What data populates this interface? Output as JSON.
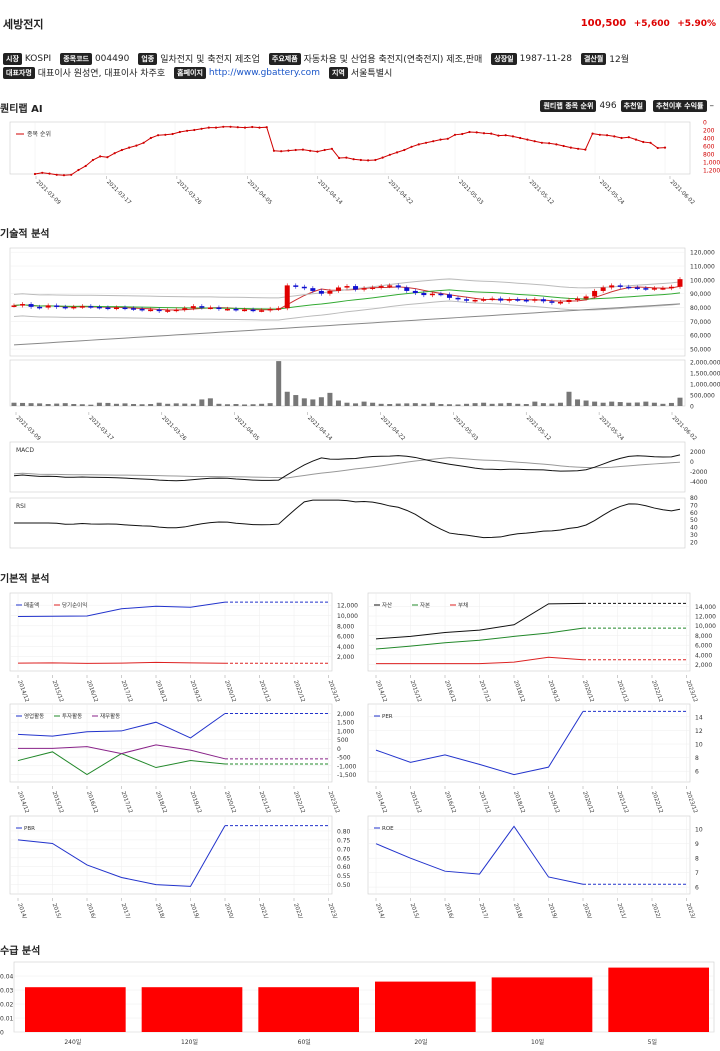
{
  "company": {
    "name": "세방전지",
    "price": "100,500",
    "change": "+5,600",
    "change_pct": "+5.90%"
  },
  "info": {
    "market_tag": "시장",
    "market": "KOSPI",
    "code_tag": "종목코드",
    "code": "004490",
    "industry_tag": "업종",
    "industry": "일차전지 및 축전지 제조업",
    "product_tag": "주요제품",
    "product": "자동차용 및 산업용 축전지(연축전지) 제조,판매",
    "listed_tag": "상장일",
    "listed": "1987-11-28",
    "fiscal_tag": "결산월",
    "fiscal": "12월",
    "ceo_tag": "대표자명",
    "ceo": "대표이사 원성연, 대표이사 차주호",
    "homepage_tag": "홈페이지",
    "homepage": "http://www.gbattery.com",
    "region_tag": "지역",
    "region": "서울특별시"
  },
  "ai": {
    "title": "퀀티랩 AI",
    "rank_tag": "퀀티랩 종목 순위",
    "rank": "496",
    "rec_date_tag": "추천일",
    "rec_return_tag": "추천이후 수익률",
    "rec_return": "–",
    "legend": "종목 순위"
  },
  "sections": {
    "technical": "기술적 분석",
    "fundamental": "기본적 분석",
    "supply": "수급 분석"
  },
  "colors": {
    "up": "#e00000",
    "down": "#1010d0",
    "accent": "#d00000",
    "series_blue": "#2233cc",
    "series_red": "#dd2222",
    "series_green": "#22882a",
    "series_purple": "#882288"
  },
  "dates": [
    "2021-03-09",
    "2021-03-17",
    "2021-03-26",
    "2021-04-05",
    "2021-04-14",
    "2021-04-22",
    "2021-05-03",
    "2021-05-12",
    "2021-05-24",
    "2021-06-02"
  ],
  "years": [
    "2014/12",
    "2015/12",
    "2016/12",
    "2017/12",
    "2018/12",
    "2019/12",
    "2020/12",
    "2021/12",
    "2022/12",
    "2023/12"
  ],
  "chart_data": [
    {
      "id": "rank",
      "type": "line",
      "title": "",
      "series": [
        {
          "name": "종목 순위",
          "values": [
            1300,
            1270,
            1290,
            1320,
            1330,
            1320,
            1200,
            1100,
            950,
            860,
            880,
            780,
            700,
            640,
            590,
            520,
            400,
            330,
            320,
            300,
            250,
            220,
            200,
            170,
            140,
            140,
            120,
            120,
            130,
            140,
            125,
            140,
            130,
            720,
            730,
            715,
            700,
            690,
            720,
            740,
            700,
            670,
            900,
            890,
            930,
            950,
            960,
            950,
            890,
            820,
            760,
            700,
            620,
            560,
            520,
            480,
            440,
            420,
            320,
            300,
            250,
            260,
            280,
            290,
            340,
            330,
            360,
            400,
            440,
            480,
            520,
            530,
            560,
            600,
            640,
            670,
            690,
            290,
            320,
            330,
            360,
            400,
            380,
            440,
            500,
            520,
            650,
            640
          ]
        }
      ],
      "y_ticks": [
        "0",
        "200",
        "400",
        "600",
        "800",
        "1,000",
        "1,200"
      ],
      "ylim": [
        0,
        1300
      ]
    },
    {
      "id": "price",
      "type": "candlestick",
      "y_ticks": [
        "120,000",
        "110,000",
        "100,000",
        "90,000",
        "80,000",
        "70,000",
        "60,000",
        "50,000"
      ],
      "ylim": [
        45000,
        123000
      ],
      "closes": [
        81500,
        82500,
        80500,
        80000,
        81500,
        80500,
        80000,
        80500,
        81000,
        80500,
        80000,
        79500,
        80000,
        79500,
        79000,
        78500,
        78500,
        77500,
        78000,
        78500,
        79500,
        81000,
        80000,
        80000,
        79000,
        79000,
        78500,
        78500,
        78000,
        78000,
        79000,
        79500,
        96000,
        95000,
        94000,
        92000,
        90000,
        92000,
        94500,
        95500,
        93000,
        94000,
        94500,
        95500,
        96000,
        94500,
        92000,
        90500,
        89000,
        90000,
        89500,
        87000,
        86000,
        85000,
        85500,
        86000,
        86500,
        85000,
        86000,
        85500,
        85000,
        86000,
        84500,
        83500,
        84000,
        85500,
        86500,
        88000,
        92000,
        94500,
        96000,
        95000,
        94500,
        94000,
        93500,
        94000,
        94000,
        95000,
        100500
      ],
      "volume": [
        150000,
        140000,
        130000,
        120000,
        90000,
        110000,
        130000,
        90000,
        80000,
        60000,
        150000,
        140000,
        100000,
        120000,
        90000,
        80000,
        90000,
        150000,
        100000,
        120000,
        110000,
        100000,
        300000,
        350000,
        100000,
        80000,
        90000,
        70000,
        80000,
        100000,
        130000,
        2050000,
        650000,
        500000,
        350000,
        300000,
        400000,
        600000,
        250000,
        150000,
        120000,
        200000,
        150000,
        100000,
        90000,
        110000,
        120000,
        130000,
        100000,
        150000,
        90000,
        80000,
        70000,
        100000,
        130000,
        150000,
        100000,
        120000,
        140000,
        100000,
        90000,
        200000,
        130000,
        110000,
        150000,
        650000,
        300000,
        250000,
        200000,
        150000,
        200000,
        180000,
        150000,
        160000,
        200000,
        150000,
        100000,
        140000,
        380000
      ],
      "volume_ticks": [
        "2,000,000",
        "1,500,000",
        "1,000,000",
        "500,000",
        "0"
      ],
      "macd_ticks": [
        "2000",
        "0",
        "-2000",
        "-4000"
      ],
      "rsi_ticks": [
        "80",
        "70",
        "60",
        "50",
        "40",
        "30",
        "20"
      ],
      "macd_label": "MACD",
      "rsi_label": "RSI"
    },
    {
      "id": "sales",
      "type": "line",
      "series": [
        {
          "name": "매출액",
          "values": [
            9800,
            9850,
            9900,
            11300,
            11800,
            11600,
            12600,
            12600,
            12600,
            12600
          ]
        },
        {
          "name": "당기순이익",
          "values": [
            750,
            800,
            700,
            750,
            900,
            800,
            720,
            720,
            720,
            720
          ]
        }
      ],
      "y_ticks": [
        "12,000",
        "10,000",
        "8,000",
        "6,000",
        "4,000",
        "2,000"
      ],
      "ylim": [
        0,
        13200
      ]
    },
    {
      "id": "assets",
      "type": "line",
      "series": [
        {
          "name": "자산",
          "values": [
            7300,
            7800,
            8600,
            9100,
            10200,
            14500,
            14600,
            14600,
            14600,
            14600
          ]
        },
        {
          "name": "자본",
          "values": [
            5200,
            5800,
            6500,
            7000,
            7800,
            8500,
            9500,
            9500,
            9500,
            9500
          ]
        },
        {
          "name": "부채",
          "values": [
            2200,
            2200,
            2200,
            2200,
            2500,
            3500,
            3000,
            3000,
            3000,
            3000
          ]
        }
      ],
      "y_ticks": [
        "14,000",
        "12,000",
        "10,000",
        "8,000",
        "6,000",
        "4,000",
        "2,000"
      ],
      "ylim": [
        1500,
        15500
      ]
    },
    {
      "id": "cashflow",
      "type": "line",
      "series": [
        {
          "name": "영업활동",
          "values": [
            800,
            700,
            950,
            1000,
            1500,
            600,
            2000,
            2000,
            2000,
            2000
          ]
        },
        {
          "name": "투자활동",
          "values": [
            -700,
            -200,
            -1500,
            -300,
            -1100,
            -700,
            -900,
            -900,
            -900,
            -900
          ]
        },
        {
          "name": "재무활동",
          "values": [
            0,
            0,
            100,
            -300,
            200,
            -100,
            -600,
            -600,
            -600,
            -600
          ]
        }
      ],
      "y_ticks": [
        "2,000",
        "1,500",
        "1,000",
        "500",
        "0",
        "-500",
        "-1,000",
        "-1,500"
      ],
      "ylim": [
        -1700,
        2200
      ]
    },
    {
      "id": "per",
      "type": "line",
      "series": [
        {
          "name": "PER",
          "values": [
            9.1,
            7.3,
            8.4,
            7.0,
            5.5,
            6.6,
            14.8,
            14.8,
            14.8,
            14.8
          ]
        }
      ],
      "y_ticks": [
        "14",
        "12",
        "10",
        "8",
        "6"
      ],
      "ylim": [
        5,
        15
      ]
    },
    {
      "id": "pbr",
      "type": "line",
      "series": [
        {
          "name": "PBR",
          "values": [
            0.75,
            0.73,
            0.61,
            0.54,
            0.5,
            0.49,
            0.83,
            0.83,
            0.83,
            0.83
          ]
        }
      ],
      "y_ticks": [
        "0.80",
        "0.75",
        "0.70",
        "0.65",
        "0.60",
        "0.55",
        "0.50"
      ],
      "ylim": [
        0.47,
        0.85
      ]
    },
    {
      "id": "roe",
      "type": "line",
      "series": [
        {
          "name": "ROE",
          "values": [
            9.0,
            8.0,
            7.1,
            6.9,
            10.2,
            6.7,
            6.2,
            6.2,
            6.2,
            6.2
          ]
        }
      ],
      "y_ticks": [
        "10",
        "9",
        "8",
        "7",
        "6"
      ],
      "ylim": [
        5.8,
        10.5
      ]
    },
    {
      "id": "supply",
      "type": "bar",
      "categories": [
        "240일",
        "120일",
        "60일",
        "20일",
        "10일",
        "5일"
      ],
      "values": [
        0.032,
        0.032,
        0.032,
        0.036,
        0.039,
        0.046
      ],
      "y_ticks": [
        "0.04",
        "0.03",
        "0.02",
        "0.01",
        "0"
      ],
      "ylim": [
        0,
        0.05
      ]
    }
  ]
}
